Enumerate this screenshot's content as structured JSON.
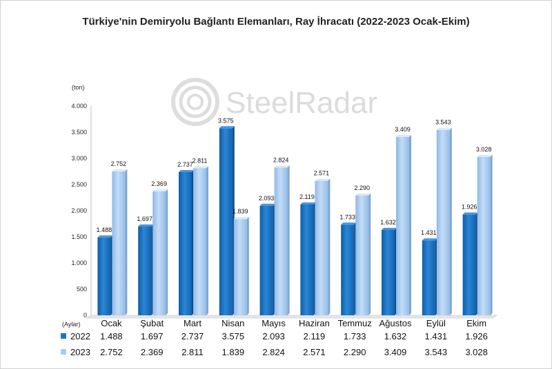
{
  "chart_data": {
    "type": "bar",
    "title": "Türkiye'nin Demiryolu Bağlantı Elemanları, Ray İhracatı (2022-2023 Ocak-Ekim)",
    "unit_label": "(ton)",
    "category_axis_label": "(Aylar)",
    "watermark": "SteelRadar",
    "categories": [
      "Ocak",
      "Şubat",
      "Mart",
      "Nisan",
      "Mayıs",
      "Haziran",
      "Temmuz",
      "Ağustos",
      "Eylül",
      "Ekim"
    ],
    "series": [
      {
        "name": "2022",
        "color": "#1a74c4",
        "values": [
          1488,
          1697,
          2737,
          3575,
          2093,
          2119,
          1733,
          1632,
          1431,
          1926
        ],
        "labels": [
          "1.488",
          "1.697",
          "2.737",
          "3.575",
          "2.093",
          "2.119",
          "1.733",
          "1.632",
          "1.431",
          "1.926"
        ]
      },
      {
        "name": "2023",
        "color": "#a9cbee",
        "values": [
          2752,
          2369,
          2811,
          1839,
          2824,
          2571,
          2290,
          3409,
          3543,
          3028
        ],
        "labels": [
          "2.752",
          "2.369",
          "2.811",
          "1.839",
          "2.824",
          "2.571",
          "2.290",
          "3.409",
          "3.543",
          "3.028"
        ]
      }
    ],
    "ylim": [
      0,
      4000
    ],
    "yticks": [
      0,
      500,
      1000,
      1500,
      2000,
      2500,
      3000,
      3500,
      4000
    ],
    "ytick_labels": [
      "0",
      "500",
      "1.000",
      "1.500",
      "2.000",
      "2.500",
      "3.000",
      "3.500",
      "4.000"
    ],
    "grid": false,
    "legend": "data-table-below"
  }
}
